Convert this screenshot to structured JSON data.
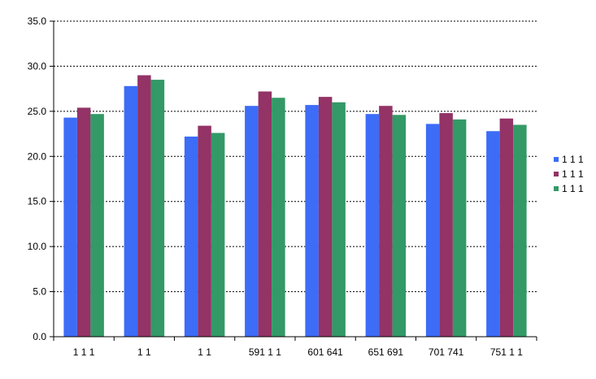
{
  "chart_data": {
    "type": "bar",
    "title": "",
    "xlabel": "",
    "ylabel": "",
    "ylim": [
      0,
      35
    ],
    "y_ticks": [
      "0.0",
      "5.0",
      "10.0",
      "15.0",
      "20.0",
      "25.0",
      "30.0",
      "35.0"
    ],
    "grid": true,
    "legend_position": "right",
    "categories": [
      "1 1 1",
      "1 1",
      "1 1",
      "591 1 1",
      "601 641",
      "651 691",
      "701 741",
      "751 1 1"
    ],
    "series": [
      {
        "name": "1 1 1",
        "color": "#3d6cf6",
        "values": [
          24.3,
          27.8,
          22.2,
          25.6,
          25.7,
          24.7,
          23.6,
          22.8
        ]
      },
      {
        "name": "1 1 1",
        "color": "#933366",
        "values": [
          25.4,
          29.0,
          23.4,
          27.2,
          26.6,
          25.6,
          24.8,
          24.2
        ]
      },
      {
        "name": "1 1 1",
        "color": "#339966",
        "values": [
          24.7,
          28.5,
          22.6,
          26.5,
          26.0,
          24.6,
          24.1,
          23.5
        ]
      }
    ]
  }
}
